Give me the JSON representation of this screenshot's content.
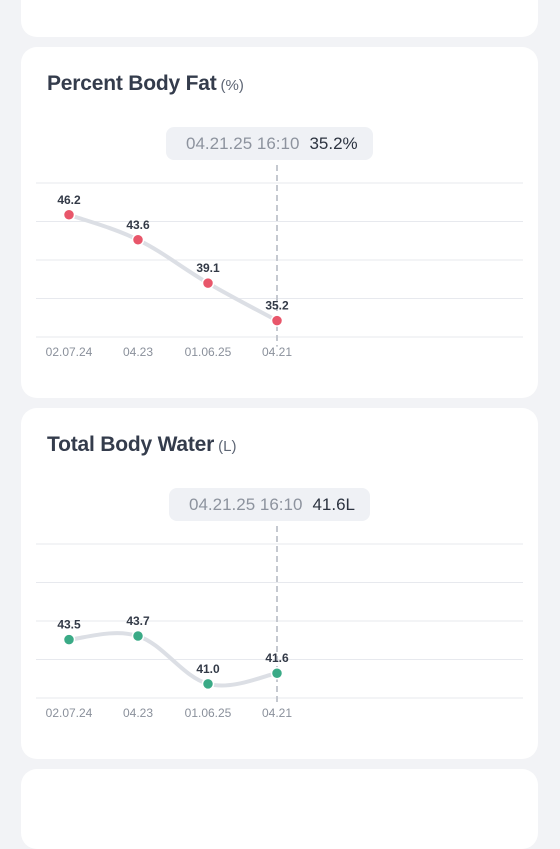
{
  "cards": {
    "body_fat": {
      "title": "Percent Body Fat",
      "unit": "(%)",
      "tooltip": {
        "date": "04.21.25 16:10",
        "value": "35.2%"
      }
    },
    "body_water": {
      "title": "Total Body Water",
      "unit": "(L)",
      "tooltip": {
        "date": "04.21.25 16:10",
        "value": "41.6L"
      }
    }
  },
  "chart_data": [
    {
      "type": "line",
      "title": "Percent Body Fat (%)",
      "x": [
        "02.07.24",
        "04.23",
        "01.06.25",
        "04.21"
      ],
      "values": [
        46.2,
        43.6,
        39.1,
        35.2
      ],
      "labels": [
        "46.2",
        "43.6",
        "39.1",
        "35.2"
      ],
      "ylim": [
        33.5,
        49.5
      ],
      "point_color": "#e8566a",
      "selected_index": 3,
      "grid": true
    },
    {
      "type": "line",
      "title": "Total Body Water (L)",
      "x": [
        "02.07.24",
        "04.23",
        "01.06.25",
        "04.21"
      ],
      "values": [
        43.5,
        43.7,
        41.0,
        41.6
      ],
      "labels": [
        "43.5",
        "43.7",
        "41.0",
        "41.6"
      ],
      "ylim": [
        40.2,
        48.9
      ],
      "point_color": "#3aaa86",
      "selected_index": 3,
      "grid": true
    }
  ]
}
